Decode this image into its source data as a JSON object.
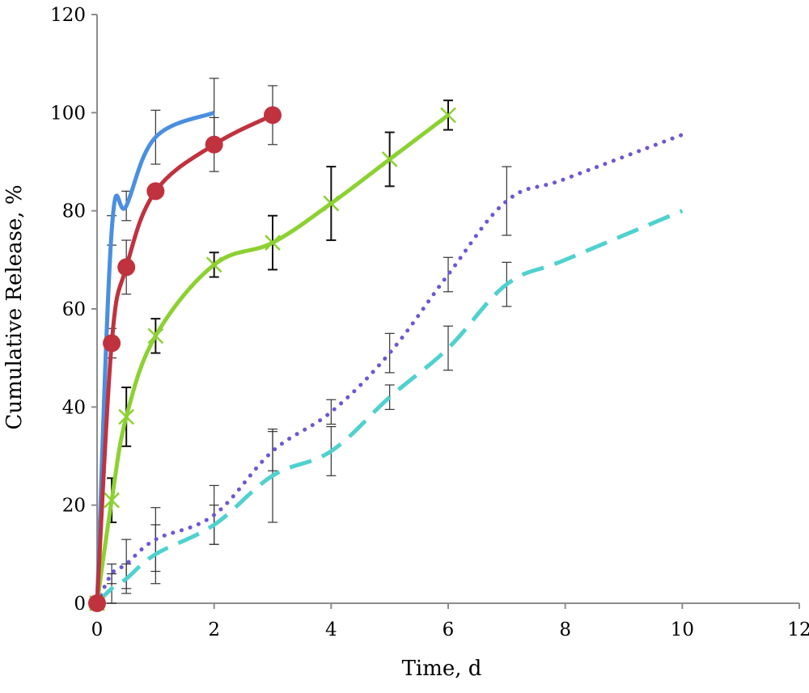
{
  "chart_data": {
    "type": "line",
    "title": "",
    "xlabel": "Time, d",
    "ylabel": "Cumulative Release, %",
    "xlim": [
      0,
      12
    ],
    "ylim": [
      0,
      120
    ],
    "xticks": [
      0,
      2,
      4,
      6,
      8,
      10,
      12
    ],
    "yticks": [
      0,
      20,
      40,
      60,
      80,
      100,
      120
    ],
    "grid": false,
    "legend": "none",
    "series": [
      {
        "color": "#4a8fe0",
        "style": "solid",
        "marker": "none",
        "x": [
          0,
          0.25,
          0.5,
          1,
          2
        ],
        "y": [
          0,
          76,
          81,
          95,
          100
        ],
        "err": [
          0,
          3,
          3,
          5.5,
          7
        ]
      },
      {
        "color": "#c0323e",
        "style": "solid",
        "marker": "circle",
        "x": [
          0,
          0.25,
          0.5,
          1,
          2,
          3
        ],
        "y": [
          0,
          53,
          68.5,
          84,
          93.5,
          99.5
        ],
        "err": [
          0,
          3,
          5.5,
          0,
          5.5,
          6
        ]
      },
      {
        "color": "#8cd132",
        "style": "solid",
        "marker": "x",
        "x": [
          0,
          0.25,
          0.5,
          1,
          2,
          3,
          4,
          5,
          6
        ],
        "y": [
          0,
          21,
          38,
          54.5,
          69,
          73.5,
          81.5,
          90.5,
          99.5
        ],
        "err": [
          0,
          4.5,
          6,
          3.5,
          2.5,
          5.5,
          7.5,
          5.5,
          3
        ]
      },
      {
        "color": "#7055d4",
        "style": "dotted",
        "marker": "none",
        "x": [
          0,
          0.25,
          0.5,
          1,
          2,
          3,
          4,
          5,
          6,
          7,
          8,
          10
        ],
        "y": [
          0,
          6,
          8,
          13,
          18,
          31,
          39,
          51,
          67,
          82,
          86.5,
          95.5
        ],
        "err": [
          0,
          2,
          5,
          6.5,
          6,
          4,
          2.5,
          4,
          3.5,
          7,
          0,
          0
        ]
      },
      {
        "color": "#4fd1cf",
        "style": "dashed",
        "marker": "none",
        "x": [
          0,
          0.25,
          0.5,
          1,
          2,
          3,
          4,
          5,
          6,
          7,
          8,
          10
        ],
        "y": [
          0,
          3,
          5,
          10,
          16,
          26,
          31,
          42,
          52,
          65,
          70,
          80
        ],
        "err": [
          0,
          3,
          3,
          6,
          4,
          9.5,
          5,
          2.5,
          4.5,
          4.5,
          0,
          0
        ]
      }
    ]
  }
}
